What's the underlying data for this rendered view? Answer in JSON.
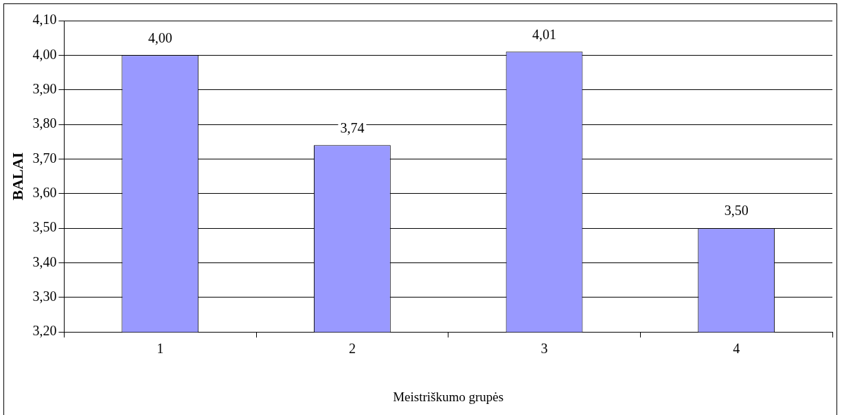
{
  "chart_data": {
    "type": "bar",
    "xlabel": "Meistriškumo grupės",
    "ylabel": "BALAI",
    "categories": [
      "1",
      "2",
      "3",
      "4"
    ],
    "values": [
      4.0,
      3.74,
      4.01,
      3.5
    ],
    "value_labels": [
      "4,00",
      "3,74",
      "4,01",
      "3,50"
    ],
    "color": "#9999ff",
    "ylim": [
      3.2,
      4.1
    ],
    "yticks": [
      {
        "value": 3.2,
        "label": "3,20"
      },
      {
        "value": 3.3,
        "label": "3,30"
      },
      {
        "value": 3.4,
        "label": "3,40"
      },
      {
        "value": 3.5,
        "label": "3,50"
      },
      {
        "value": 3.6,
        "label": "3,60"
      },
      {
        "value": 3.7,
        "label": "3,70"
      },
      {
        "value": 3.8,
        "label": "3,80"
      },
      {
        "value": 3.9,
        "label": "3,90"
      },
      {
        "value": 4.0,
        "label": "4,00"
      },
      {
        "value": 4.1,
        "label": "4,10"
      }
    ],
    "grid": "y",
    "legend": false
  }
}
